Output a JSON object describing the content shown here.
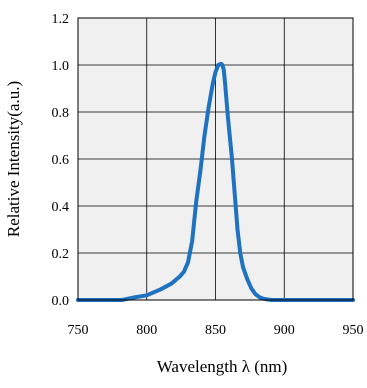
{
  "chart_data": {
    "type": "line",
    "xlabel": "Wavelength λ (nm)",
    "ylabel": "Relative Intensity(a.u.)",
    "xlim": [
      750,
      950
    ],
    "ylim": [
      0.0,
      1.2
    ],
    "x_ticks": [
      "750",
      "800",
      "850",
      "900",
      "950"
    ],
    "y_ticks": [
      "0.0",
      "0.2",
      "0.4",
      "0.6",
      "0.8",
      "1.0",
      "1.2"
    ],
    "grid": true,
    "series": [
      {
        "color": "#1f72c0",
        "x": [
          750,
          770,
          782,
          790,
          800,
          810,
          818,
          824,
          827,
          830,
          833,
          836,
          839,
          842,
          845,
          848,
          850,
          852,
          854,
          855,
          856,
          857,
          858,
          859,
          860,
          862,
          864,
          866,
          868,
          870,
          873,
          876,
          879,
          882,
          885,
          888,
          891,
          895,
          900,
          920,
          950
        ],
        "y": [
          0.0,
          0.0,
          0.0,
          0.01,
          0.02,
          0.045,
          0.07,
          0.1,
          0.12,
          0.16,
          0.25,
          0.42,
          0.55,
          0.7,
          0.82,
          0.92,
          0.97,
          1.0,
          1.005,
          1.0,
          0.98,
          0.92,
          0.85,
          0.78,
          0.72,
          0.6,
          0.45,
          0.3,
          0.2,
          0.14,
          0.09,
          0.05,
          0.025,
          0.012,
          0.005,
          0.002,
          0.0,
          0.0,
          0.0,
          0.0,
          0.0
        ]
      }
    ]
  }
}
